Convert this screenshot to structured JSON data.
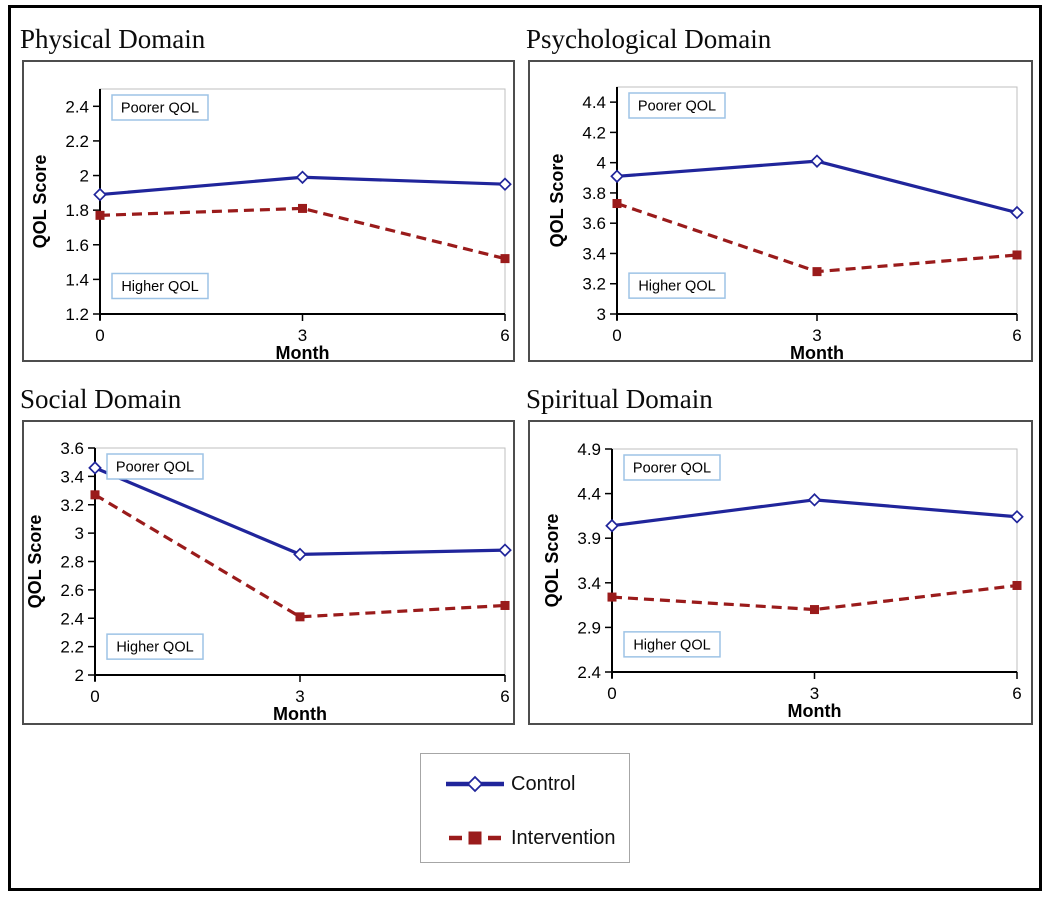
{
  "colors": {
    "control_line": "#20259B",
    "intervention_line": "#9A1B1B",
    "annotation_box_border": "#9DC3E6",
    "annotation_box_fill": "#FFFFFF",
    "chart_box_border": "#4D4D4D",
    "plot_area_border": "#BFBFBF",
    "outer_border": "#000000",
    "legend_box_border": "#A6A6A6",
    "axis_color": "#000000",
    "text_color": "#000000"
  },
  "legend": {
    "position": "bottom-center",
    "items": [
      {
        "label": "Control",
        "color": "#20259B",
        "line": "solid",
        "marker": "open-diamond"
      },
      {
        "label": "Intervention",
        "color": "#9A1B1B",
        "line": "dashed",
        "marker": "filled-square"
      }
    ]
  },
  "chart_data": [
    {
      "type": "line",
      "title": "Physical Domain",
      "xlabel": "Month",
      "ylabel": "QOL Score",
      "x_categories": [
        "0",
        "3",
        "6"
      ],
      "x_values": [
        0,
        3,
        6
      ],
      "ylim": [
        1.2,
        2.5
      ],
      "ytick_values": [
        1.2,
        1.4,
        1.6,
        1.8,
        2.0,
        2.2,
        2.4
      ],
      "ytick_labels": [
        "1.2",
        "1.4",
        "1.6",
        "1.8",
        "2",
        "2.2",
        "2.4"
      ],
      "grid": false,
      "annotations": {
        "top": "Poorer QOL",
        "bottom": "Higher QOL"
      },
      "series": [
        {
          "name": "Control",
          "color": "#20259B",
          "line": "solid",
          "marker": "open-diamond",
          "values": [
            1.89,
            1.99,
            1.95
          ]
        },
        {
          "name": "Intervention",
          "color": "#9A1B1B",
          "line": "dashed",
          "marker": "filled-square",
          "values": [
            1.77,
            1.81,
            1.52
          ]
        }
      ]
    },
    {
      "type": "line",
      "title": "Psychological Domain",
      "xlabel": "Month",
      "ylabel": "QOL Score",
      "x_categories": [
        "0",
        "3",
        "6"
      ],
      "x_values": [
        0,
        3,
        6
      ],
      "ylim": [
        3.0,
        4.5
      ],
      "ytick_values": [
        3.0,
        3.2,
        3.4,
        3.6,
        3.8,
        4.0,
        4.2,
        4.4
      ],
      "ytick_labels": [
        "3",
        "3.2",
        "3.4",
        "3.6",
        "3.8",
        "4",
        "4.2",
        "4.4"
      ],
      "grid": false,
      "annotations": {
        "top": "Poorer QOL",
        "bottom": "Higher QOL"
      },
      "series": [
        {
          "name": "Control",
          "color": "#20259B",
          "line": "solid",
          "marker": "open-diamond",
          "values": [
            3.91,
            4.01,
            3.67
          ]
        },
        {
          "name": "Intervention",
          "color": "#9A1B1B",
          "line": "dashed",
          "marker": "filled-square",
          "values": [
            3.73,
            3.28,
            3.39
          ]
        }
      ]
    },
    {
      "type": "line",
      "title": "Social Domain",
      "xlabel": "Month",
      "ylabel": "QOL Score",
      "x_categories": [
        "0",
        "3",
        "6"
      ],
      "x_values": [
        0,
        3,
        6
      ],
      "ylim": [
        2.0,
        3.6
      ],
      "ytick_values": [
        2.0,
        2.2,
        2.4,
        2.6,
        2.8,
        3.0,
        3.2,
        3.4,
        3.6
      ],
      "ytick_labels": [
        "2",
        "2.2",
        "2.4",
        "2.6",
        "2.8",
        "3",
        "3.2",
        "3.4",
        "3.6"
      ],
      "grid": false,
      "annotations": {
        "top": "Poorer QOL",
        "bottom": "Higher QOL"
      },
      "series": [
        {
          "name": "Control",
          "color": "#20259B",
          "line": "solid",
          "marker": "open-diamond",
          "values": [
            3.46,
            2.85,
            2.88
          ]
        },
        {
          "name": "Intervention",
          "color": "#9A1B1B",
          "line": "dashed",
          "marker": "filled-square",
          "values": [
            3.27,
            2.41,
            2.49
          ]
        }
      ]
    },
    {
      "type": "line",
      "title": "Spiritual Domain",
      "xlabel": "Month",
      "ylabel": "QOL Score",
      "x_categories": [
        "0",
        "3",
        "6"
      ],
      "x_values": [
        0,
        3,
        6
      ],
      "ylim": [
        2.4,
        4.9
      ],
      "ytick_values": [
        2.4,
        2.9,
        3.4,
        3.9,
        4.4,
        4.9
      ],
      "ytick_labels": [
        "2.4",
        "2.9",
        "3.4",
        "3.9",
        "4.4",
        "4.9"
      ],
      "grid": false,
      "annotations": {
        "top": "Poorer QOL",
        "bottom": "Higher QOL"
      },
      "series": [
        {
          "name": "Control",
          "color": "#20259B",
          "line": "solid",
          "marker": "open-diamond",
          "values": [
            4.04,
            4.33,
            4.14
          ]
        },
        {
          "name": "Intervention",
          "color": "#9A1B1B",
          "line": "dashed",
          "marker": "filled-square",
          "values": [
            3.24,
            3.1,
            3.37
          ]
        }
      ]
    }
  ]
}
